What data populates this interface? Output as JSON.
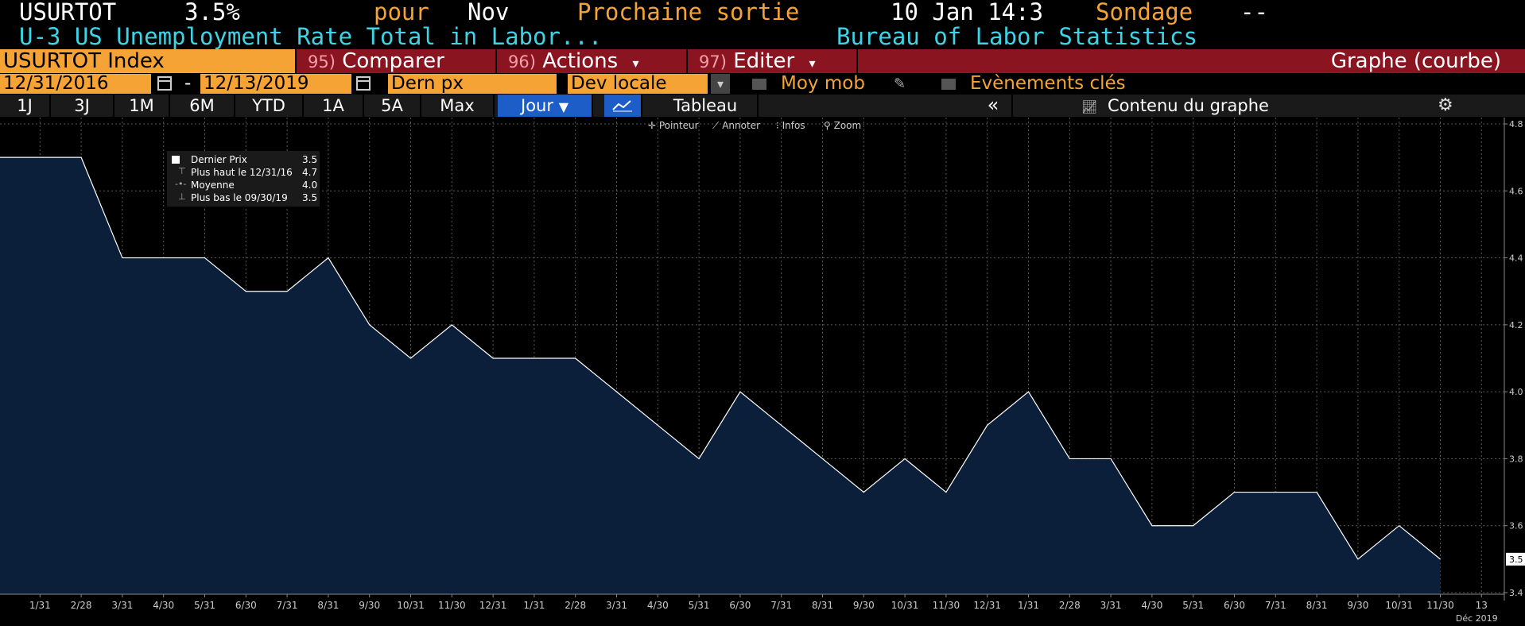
{
  "header": {
    "ticker": "USURTOT",
    "last_value": "3.5%",
    "period_prefix": "pour",
    "period": "Nov",
    "next_release_label": "Prochaine sortie",
    "next_release": "10 Jan 14:3",
    "survey_label": "Sondage",
    "survey_value": "--",
    "description": "U-3 US Unemployment Rate Total in Labor...",
    "source": "Bureau of Labor Statistics"
  },
  "menubar": {
    "security": "USURTOT Index",
    "compare_num": "95)",
    "compare": "Comparer",
    "actions_num": "96)",
    "actions": "Actions",
    "edit_num": "97)",
    "edit": "Editer",
    "chart_type": "Graphe (courbe)"
  },
  "controls": {
    "start_date": "12/31/2016",
    "separator": "-",
    "end_date": "12/13/2019",
    "field": "Dern px",
    "currency": "Dev locale",
    "moving_avg": "Moy mob",
    "key_events": "Evènements clés"
  },
  "ranges": {
    "buttons": [
      "1J",
      "3J",
      "1M",
      "6M",
      "YTD",
      "1A",
      "5A",
      "Max"
    ],
    "frequency": "Jour",
    "table": "Tableau",
    "chart_content": "Contenu du graphe"
  },
  "toolbar": {
    "pointer": "Pointeur",
    "annotate": "Annoter",
    "infos": "Infos",
    "zoom": "Zoom"
  },
  "legend": {
    "items": [
      {
        "label": "Dernier Prix",
        "value": "3.5"
      },
      {
        "label": "Plus haut le 12/31/16",
        "value": "4.7"
      },
      {
        "label": "Moyenne",
        "value": "4.0"
      },
      {
        "label": "Plus bas le 09/30/19",
        "value": "3.5"
      }
    ]
  },
  "chart_data": {
    "type": "area",
    "x": [
      "1/31",
      "2/28",
      "3/31",
      "4/30",
      "5/31",
      "6/30",
      "7/31",
      "8/31",
      "9/30",
      "10/31",
      "11/30",
      "12/31",
      "1/31",
      "2/28",
      "3/31",
      "4/30",
      "5/31",
      "6/30",
      "7/31",
      "8/31",
      "9/30",
      "10/31",
      "11/30",
      "12/31",
      "1/31",
      "2/28",
      "3/31",
      "4/30",
      "5/31",
      "6/30",
      "7/31",
      "8/31",
      "9/30",
      "10/31",
      "11/30",
      "13"
    ],
    "x_full": [
      "2016-12-31",
      "2017-01-31",
      "2017-02-28",
      "2017-03-31",
      "2017-04-30",
      "2017-05-31",
      "2017-06-30",
      "2017-07-31",
      "2017-08-31",
      "2017-09-30",
      "2017-10-31",
      "2017-11-30",
      "2017-12-31",
      "2018-01-31",
      "2018-02-28",
      "2018-03-31",
      "2018-04-30",
      "2018-05-31",
      "2018-06-30",
      "2018-07-31",
      "2018-08-31",
      "2018-09-30",
      "2018-10-31",
      "2018-11-30",
      "2018-12-31",
      "2019-01-31",
      "2019-02-28",
      "2019-03-31",
      "2019-04-30",
      "2019-05-31",
      "2019-06-30",
      "2019-07-31",
      "2019-08-31",
      "2019-09-30",
      "2019-10-31",
      "2019-11-30"
    ],
    "values": [
      4.7,
      4.7,
      4.7,
      4.4,
      4.4,
      4.4,
      4.3,
      4.3,
      4.4,
      4.2,
      4.1,
      4.2,
      4.1,
      4.1,
      4.1,
      4.0,
      3.9,
      3.8,
      4.0,
      3.9,
      3.8,
      3.7,
      3.8,
      3.7,
      3.9,
      4.0,
      3.8,
      3.8,
      3.6,
      3.6,
      3.7,
      3.7,
      3.7,
      3.5,
      3.6,
      3.5
    ],
    "ylim": [
      3.4,
      4.8
    ],
    "yticks": [
      "3.4",
      "3.6",
      "3.8",
      "4.0",
      "4.2",
      "4.4",
      "4.6",
      "4.8"
    ],
    "last_label": "3.5",
    "x_caption": "Déc 2019",
    "grid": true,
    "colors": {
      "fill": "#0b1f3b",
      "line": "#ffffff",
      "grid": "#5a5a5a"
    }
  }
}
